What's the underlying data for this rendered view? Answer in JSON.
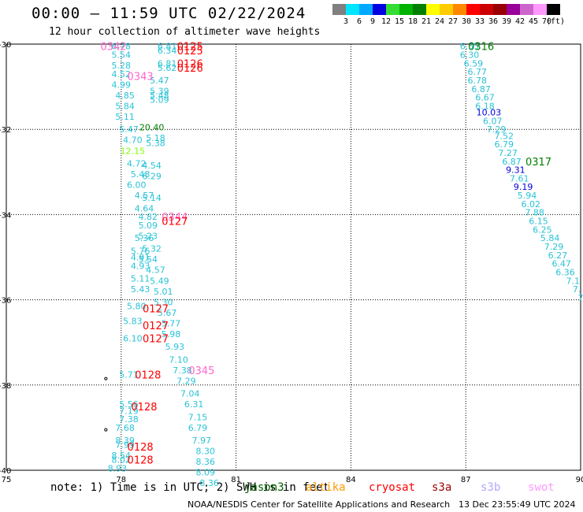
{
  "header": {
    "title": "00:00 — 11:59 UTC 02/22/2024",
    "subtitle": "12 hour collection of altimeter wave heights"
  },
  "colorbar": {
    "unit": "(ft)",
    "bins": [
      {
        "label": "3",
        "color": "#808080"
      },
      {
        "label": "6",
        "color": "#00e5ff"
      },
      {
        "label": "9",
        "color": "#00a8ff"
      },
      {
        "label": "12",
        "color": "#0000e0"
      },
      {
        "label": "15",
        "color": "#33dd33"
      },
      {
        "label": "18",
        "color": "#00b300"
      },
      {
        "label": "21",
        "color": "#008000"
      },
      {
        "label": "24",
        "color": "#ffff00"
      },
      {
        "label": "27",
        "color": "#ffcc00"
      },
      {
        "label": "30",
        "color": "#ff8800"
      },
      {
        "label": "33",
        "color": "#ff0000"
      },
      {
        "label": "36",
        "color": "#cc0000"
      },
      {
        "label": "39",
        "color": "#990000"
      },
      {
        "label": "42",
        "color": "#990099"
      },
      {
        "label": "45",
        "color": "#cc66cc"
      },
      {
        "label": "70",
        "color": "#ff99ff"
      },
      {
        "label": "",
        "color": "#000000"
      }
    ]
  },
  "footer": {
    "note": "note: 1) Time is in UTC; 2) SWH is in feet",
    "satellites": [
      {
        "name": "jason3",
        "color": "#006400"
      },
      {
        "name": "altika",
        "color": "#ff9900"
      },
      {
        "name": "cryosat",
        "color": "#ff0000"
      },
      {
        "name": "s3a",
        "color": "#990000"
      },
      {
        "name": "s3b",
        "color": "#b0a8ff"
      },
      {
        "name": "swot",
        "color": "#ff99ff"
      }
    ],
    "credit": "NOAA/NESDIS Center for Satellite Applications and Research",
    "generated": "13 Dec 23:55:49 UTC 2024"
  },
  "chart_data": {
    "type": "scatter",
    "title": "00:00 — 11:59 UTC 02/22/2024",
    "subtitle": "12 hour collection of altimeter wave heights",
    "xlabel": "",
    "ylabel": "",
    "xlim": [
      75,
      90
    ],
    "ylim": [
      -40,
      -30
    ],
    "x_ticks": [
      "75",
      "78",
      "81",
      "84",
      "87",
      "90"
    ],
    "y_ticks": [
      "-30",
      "-32",
      "-34",
      "-36",
      "-38",
      "-40"
    ],
    "grid": true,
    "legend": "bottom",
    "points": [
      {
        "x": 78.0,
        "y": -30.05,
        "label": "6.78",
        "color": "#29c3d6"
      },
      {
        "x": 78.0,
        "y": -30.25,
        "label": "5.54",
        "color": "#29c3d6"
      },
      {
        "x": 78.0,
        "y": -30.5,
        "label": "5.28",
        "color": "#29c3d6"
      },
      {
        "x": 78.0,
        "y": -30.7,
        "label": "4.52",
        "color": "#29c3d6"
      },
      {
        "x": 78.0,
        "y": -30.95,
        "label": "4.99",
        "color": "#29c3d6"
      },
      {
        "x": 78.1,
        "y": -31.2,
        "label": "4.85",
        "color": "#29c3d6"
      },
      {
        "x": 78.1,
        "y": -31.45,
        "label": "5.84",
        "color": "#29c3d6"
      },
      {
        "x": 78.1,
        "y": -31.7,
        "label": "5.11",
        "color": "#29c3d6"
      },
      {
        "x": 78.2,
        "y": -32.0,
        "label": "5.47",
        "color": "#29c3d6"
      },
      {
        "x": 78.8,
        "y": -31.95,
        "label": "20.40",
        "color": "#008000"
      },
      {
        "x": 78.3,
        "y": -32.25,
        "label": "4.70",
        "color": "#29c3d6"
      },
      {
        "x": 78.9,
        "y": -32.2,
        "label": "5.18",
        "color": "#29c3d6"
      },
      {
        "x": 78.9,
        "y": -32.32,
        "label": "5.38",
        "color": "#29c3d6"
      },
      {
        "x": 78.3,
        "y": -32.5,
        "label": "12.15",
        "color": "#7fff00"
      },
      {
        "x": 78.4,
        "y": -32.8,
        "label": "4.72",
        "color": "#29c3d6"
      },
      {
        "x": 78.8,
        "y": -32.85,
        "label": "4.54",
        "color": "#29c3d6"
      },
      {
        "x": 78.5,
        "y": -33.05,
        "label": "5.48",
        "color": "#29c3d6"
      },
      {
        "x": 78.8,
        "y": -33.1,
        "label": "6.29",
        "color": "#29c3d6"
      },
      {
        "x": 78.4,
        "y": -33.3,
        "label": "6.00",
        "color": "#29c3d6"
      },
      {
        "x": 78.6,
        "y": -33.55,
        "label": "4.57",
        "color": "#29c3d6"
      },
      {
        "x": 78.8,
        "y": -33.6,
        "label": "5.14",
        "color": "#29c3d6"
      },
      {
        "x": 78.6,
        "y": -33.85,
        "label": "4.64",
        "color": "#29c3d6"
      },
      {
        "x": 78.7,
        "y": -34.05,
        "label": "4.82",
        "color": "#29c3d6"
      },
      {
        "x": 78.7,
        "y": -34.25,
        "label": "5.09",
        "color": "#29c3d6"
      },
      {
        "x": 78.7,
        "y": -34.5,
        "label": "5.23",
        "color": "#29c3d6"
      },
      {
        "x": 78.6,
        "y": -34.55,
        "label": "5.36",
        "color": "#29c3d6"
      },
      {
        "x": 78.8,
        "y": -34.8,
        "label": "5.32",
        "color": "#29c3d6"
      },
      {
        "x": 78.5,
        "y": -34.85,
        "label": "5.76",
        "color": "#29c3d6"
      },
      {
        "x": 78.7,
        "y": -35.05,
        "label": "5.54",
        "color": "#29c3d6"
      },
      {
        "x": 78.5,
        "y": -35.0,
        "label": "4.91",
        "color": "#29c3d6"
      },
      {
        "x": 78.5,
        "y": -35.2,
        "label": "4.93",
        "color": "#29c3d6"
      },
      {
        "x": 78.9,
        "y": -35.3,
        "label": "4.57",
        "color": "#29c3d6"
      },
      {
        "x": 78.5,
        "y": -35.5,
        "label": "5.11",
        "color": "#29c3d6"
      },
      {
        "x": 79.0,
        "y": -35.55,
        "label": "5.49",
        "color": "#29c3d6"
      },
      {
        "x": 78.5,
        "y": -35.75,
        "label": "5.43",
        "color": "#29c3d6"
      },
      {
        "x": 79.1,
        "y": -35.8,
        "label": "5.01",
        "color": "#29c3d6"
      },
      {
        "x": 79.1,
        "y": -36.05,
        "label": "5.30",
        "color": "#29c3d6"
      },
      {
        "x": 78.4,
        "y": -36.15,
        "label": "5.80",
        "color": "#29c3d6"
      },
      {
        "x": 79.2,
        "y": -36.3,
        "label": "5.67",
        "color": "#29c3d6"
      },
      {
        "x": 78.3,
        "y": -36.5,
        "label": "5.83",
        "color": "#29c3d6"
      },
      {
        "x": 79.3,
        "y": -36.55,
        "label": "5.77",
        "color": "#29c3d6"
      },
      {
        "x": 79.3,
        "y": -36.8,
        "label": "5.98",
        "color": "#29c3d6"
      },
      {
        "x": 78.3,
        "y": -36.9,
        "label": "6.10",
        "color": "#29c3d6"
      },
      {
        "x": 79.4,
        "y": -37.1,
        "label": "5.93",
        "color": "#29c3d6"
      },
      {
        "x": 79.5,
        "y": -37.4,
        "label": "7.10",
        "color": "#29c3d6"
      },
      {
        "x": 79.6,
        "y": -37.65,
        "label": "7.38",
        "color": "#29c3d6"
      },
      {
        "x": 78.2,
        "y": -37.75,
        "label": "5.71",
        "color": "#29c3d6"
      },
      {
        "x": 79.7,
        "y": -37.9,
        "label": "7.29",
        "color": "#29c3d6"
      },
      {
        "x": 79.8,
        "y": -38.2,
        "label": "7.04",
        "color": "#29c3d6"
      },
      {
        "x": 78.2,
        "y": -38.45,
        "label": "5.56",
        "color": "#29c3d6"
      },
      {
        "x": 79.9,
        "y": -38.45,
        "label": "6.31",
        "color": "#29c3d6"
      },
      {
        "x": 78.2,
        "y": -38.6,
        "label": "7.19",
        "color": "#29c3d6"
      },
      {
        "x": 78.2,
        "y": -38.8,
        "label": "7.38",
        "color": "#29c3d6"
      },
      {
        "x": 80.0,
        "y": -38.75,
        "label": "7.15",
        "color": "#29c3d6"
      },
      {
        "x": 78.1,
        "y": -39.0,
        "label": "7.68",
        "color": "#29c3d6"
      },
      {
        "x": 80.0,
        "y": -39.0,
        "label": "6.79",
        "color": "#29c3d6"
      },
      {
        "x": 78.1,
        "y": -39.3,
        "label": "8.39",
        "color": "#29c3d6"
      },
      {
        "x": 78.1,
        "y": -39.4,
        "label": "7.99",
        "color": "#29c3d6"
      },
      {
        "x": 80.1,
        "y": -39.3,
        "label": "7.97",
        "color": "#29c3d6"
      },
      {
        "x": 80.2,
        "y": -39.55,
        "label": "8.30",
        "color": "#29c3d6"
      },
      {
        "x": 78.0,
        "y": -39.65,
        "label": "8.54",
        "color": "#29c3d6"
      },
      {
        "x": 78.0,
        "y": -39.75,
        "label": "8.02",
        "color": "#29c3d6"
      },
      {
        "x": 80.2,
        "y": -39.8,
        "label": "8.36",
        "color": "#29c3d6"
      },
      {
        "x": 77.9,
        "y": -39.95,
        "label": "8.93",
        "color": "#29c3d6"
      },
      {
        "x": 80.2,
        "y": -40.05,
        "label": "8.09",
        "color": "#29c3d6"
      },
      {
        "x": 80.3,
        "y": -40.3,
        "label": "8.36",
        "color": "#29c3d6"
      },
      {
        "x": 79.2,
        "y": -30.05,
        "label": "6.81",
        "color": "#29c3d6"
      },
      {
        "x": 79.2,
        "y": -30.15,
        "label": "6.34",
        "color": "#29c3d6"
      },
      {
        "x": 79.2,
        "y": -30.45,
        "label": "6.81",
        "color": "#29c3d6"
      },
      {
        "x": 79.2,
        "y": -30.55,
        "label": "5.62",
        "color": "#29c3d6"
      },
      {
        "x": 79.0,
        "y": -30.85,
        "label": "5.47",
        "color": "#29c3d6"
      },
      {
        "x": 79.0,
        "y": -31.1,
        "label": "5.39",
        "color": "#29c3d6"
      },
      {
        "x": 79.0,
        "y": -31.2,
        "label": "5.48",
        "color": "#29c3d6"
      },
      {
        "x": 79.0,
        "y": -31.3,
        "label": "5.09",
        "color": "#29c3d6"
      },
      {
        "x": 87.1,
        "y": -30.05,
        "label": "6.55",
        "color": "#29c3d6"
      },
      {
        "x": 87.1,
        "y": -30.25,
        "label": "6.30",
        "color": "#29c3d6"
      },
      {
        "x": 87.2,
        "y": -30.45,
        "label": "6.59",
        "color": "#29c3d6"
      },
      {
        "x": 87.3,
        "y": -30.65,
        "label": "6.77",
        "color": "#29c3d6"
      },
      {
        "x": 87.3,
        "y": -30.85,
        "label": "6.78",
        "color": "#29c3d6"
      },
      {
        "x": 87.4,
        "y": -31.05,
        "label": "6.87",
        "color": "#29c3d6"
      },
      {
        "x": 87.5,
        "y": -31.25,
        "label": "6.67",
        "color": "#29c3d6"
      },
      {
        "x": 87.5,
        "y": -31.45,
        "label": "6.18",
        "color": "#29c3d6"
      },
      {
        "x": 87.6,
        "y": -31.6,
        "label": "10.03",
        "color": "#0000e0"
      },
      {
        "x": 87.7,
        "y": -31.8,
        "label": "6.07",
        "color": "#29c3d6"
      },
      {
        "x": 87.8,
        "y": -32.0,
        "label": "7.29",
        "color": "#29c3d6"
      },
      {
        "x": 88.0,
        "y": -32.15,
        "label": "7.52",
        "color": "#29c3d6"
      },
      {
        "x": 88.0,
        "y": -32.35,
        "label": "6.79",
        "color": "#29c3d6"
      },
      {
        "x": 88.1,
        "y": -32.55,
        "label": "7.27",
        "color": "#29c3d6"
      },
      {
        "x": 88.2,
        "y": -32.75,
        "label": "6.87",
        "color": "#29c3d6"
      },
      {
        "x": 88.3,
        "y": -32.95,
        "label": "9.31",
        "color": "#0000e0"
      },
      {
        "x": 88.4,
        "y": -33.15,
        "label": "7.61",
        "color": "#29c3d6"
      },
      {
        "x": 88.5,
        "y": -33.35,
        "label": "9.19",
        "color": "#0000e0"
      },
      {
        "x": 88.6,
        "y": -33.55,
        "label": "5.94",
        "color": "#29c3d6"
      },
      {
        "x": 88.7,
        "y": -33.75,
        "label": "6.02",
        "color": "#29c3d6"
      },
      {
        "x": 88.8,
        "y": -33.95,
        "label": "7.88",
        "color": "#29c3d6"
      },
      {
        "x": 88.9,
        "y": -34.15,
        "label": "6.15",
        "color": "#29c3d6"
      },
      {
        "x": 89.0,
        "y": -34.35,
        "label": "6.25",
        "color": "#29c3d6"
      },
      {
        "x": 89.2,
        "y": -34.55,
        "label": "5.84",
        "color": "#29c3d6"
      },
      {
        "x": 89.3,
        "y": -34.75,
        "label": "7.29",
        "color": "#29c3d6"
      },
      {
        "x": 89.4,
        "y": -34.95,
        "label": "6.27",
        "color": "#29c3d6"
      },
      {
        "x": 89.5,
        "y": -35.15,
        "label": "6.47",
        "color": "#29c3d6"
      },
      {
        "x": 89.6,
        "y": -35.35,
        "label": "6.36",
        "color": "#29c3d6"
      },
      {
        "x": 89.8,
        "y": -35.55,
        "label": "7.1",
        "color": "#29c3d6"
      },
      {
        "x": 89.9,
        "y": -35.75,
        "label": "7.",
        "color": "#29c3d6"
      },
      {
        "x": 90.0,
        "y": -35.95,
        "label": "7",
        "color": "#29c3d6"
      }
    ],
    "pass_labels": [
      {
        "x": 77.8,
        "y": -30.05,
        "label": "0342",
        "color": "#ff66cc"
      },
      {
        "x": 79.8,
        "y": -30.05,
        "label": "0125",
        "color": "#ff0000"
      },
      {
        "x": 79.8,
        "y": -30.15,
        "label": "0125",
        "color": "#ff0000"
      },
      {
        "x": 79.8,
        "y": -30.45,
        "label": "0126",
        "color": "#ff0000"
      },
      {
        "x": 79.8,
        "y": -30.55,
        "label": "0126",
        "color": "#ff0000"
      },
      {
        "x": 78.5,
        "y": -30.75,
        "label": "0343",
        "color": "#ff66cc"
      },
      {
        "x": 79.4,
        "y": -34.05,
        "label": "0344",
        "color": "#ff66cc"
      },
      {
        "x": 79.4,
        "y": -34.15,
        "label": "0127",
        "color": "#ff0000"
      },
      {
        "x": 78.9,
        "y": -36.2,
        "label": "0127",
        "color": "#ff0000"
      },
      {
        "x": 78.9,
        "y": -36.6,
        "label": "0127",
        "color": "#ff0000"
      },
      {
        "x": 78.9,
        "y": -36.9,
        "label": "0127",
        "color": "#ff0000"
      },
      {
        "x": 78.7,
        "y": -37.75,
        "label": "0128",
        "color": "#ff0000"
      },
      {
        "x": 80.1,
        "y": -37.65,
        "label": "0345",
        "color": "#ff66cc"
      },
      {
        "x": 78.6,
        "y": -38.5,
        "label": "0128",
        "color": "#ff0000"
      },
      {
        "x": 78.5,
        "y": -39.45,
        "label": "0128",
        "color": "#ff0000"
      },
      {
        "x": 78.5,
        "y": -39.75,
        "label": "0128",
        "color": "#ff0000"
      },
      {
        "x": 87.4,
        "y": -30.05,
        "label": "0316",
        "color": "#008000"
      },
      {
        "x": 88.9,
        "y": -32.75,
        "label": "0317",
        "color": "#008000"
      }
    ],
    "markers": [
      {
        "x": 77.6,
        "y": -37.85
      },
      {
        "x": 77.6,
        "y": -39.05
      }
    ]
  }
}
